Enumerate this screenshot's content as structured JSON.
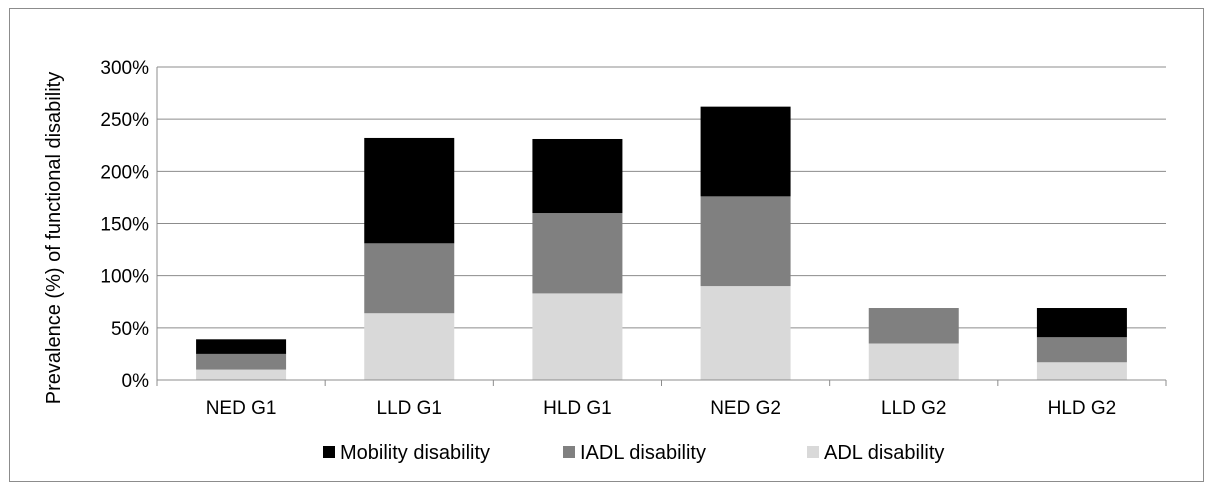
{
  "chart_data": {
    "type": "bar",
    "stacked": true,
    "title": "",
    "xlabel": "",
    "ylabel": "Prevalence (%) of functional disability",
    "ylim": [
      0,
      300
    ],
    "yticks": [
      "0%",
      "50%",
      "100%",
      "150%",
      "200%",
      "250%",
      "300%"
    ],
    "grid": true,
    "legend": "bottom",
    "categories": [
      "NED G1",
      "LLD G1",
      "HLD G1",
      "NED G2",
      "LLD G2",
      "HLD G2"
    ],
    "series": [
      {
        "name": "ADL disability",
        "color": "#d9d9d9",
        "values": [
          10,
          64,
          83,
          90,
          35,
          17
        ]
      },
      {
        "name": "IADL disability",
        "color": "#808080",
        "values": [
          15,
          67,
          77,
          86,
          34,
          24
        ]
      },
      {
        "name": "Mobility disability",
        "color": "#000000",
        "values": [
          14,
          101,
          71,
          86,
          0,
          28
        ]
      }
    ],
    "legend_order": [
      2,
      1,
      0
    ]
  }
}
